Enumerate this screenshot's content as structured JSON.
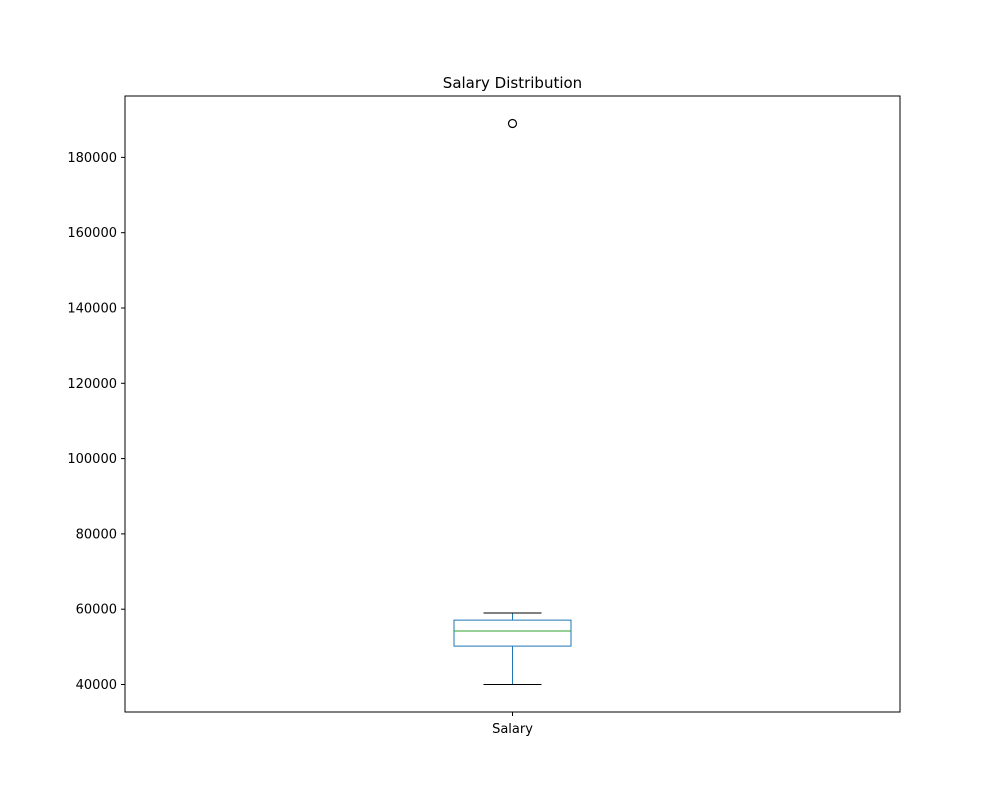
{
  "chart_data": {
    "type": "box",
    "title": "Salary Distribution",
    "xlabel": "",
    "ylabel": "",
    "categories": [
      "Salary"
    ],
    "boxes": [
      {
        "category": "Salary",
        "whisker_low": 40000,
        "q1": 50200,
        "median": 54200,
        "q3": 57100,
        "whisker_high": 59000,
        "outliers": [
          189000
        ]
      }
    ],
    "yticks": [
      40000,
      60000,
      80000,
      100000,
      120000,
      140000,
      160000,
      180000
    ],
    "ylim": [
      32700,
      196300
    ],
    "grid": false,
    "colors": {
      "box": "#1f77b4",
      "median": "#2ca02c",
      "caps": "#000000",
      "outlier": "#000000"
    }
  }
}
